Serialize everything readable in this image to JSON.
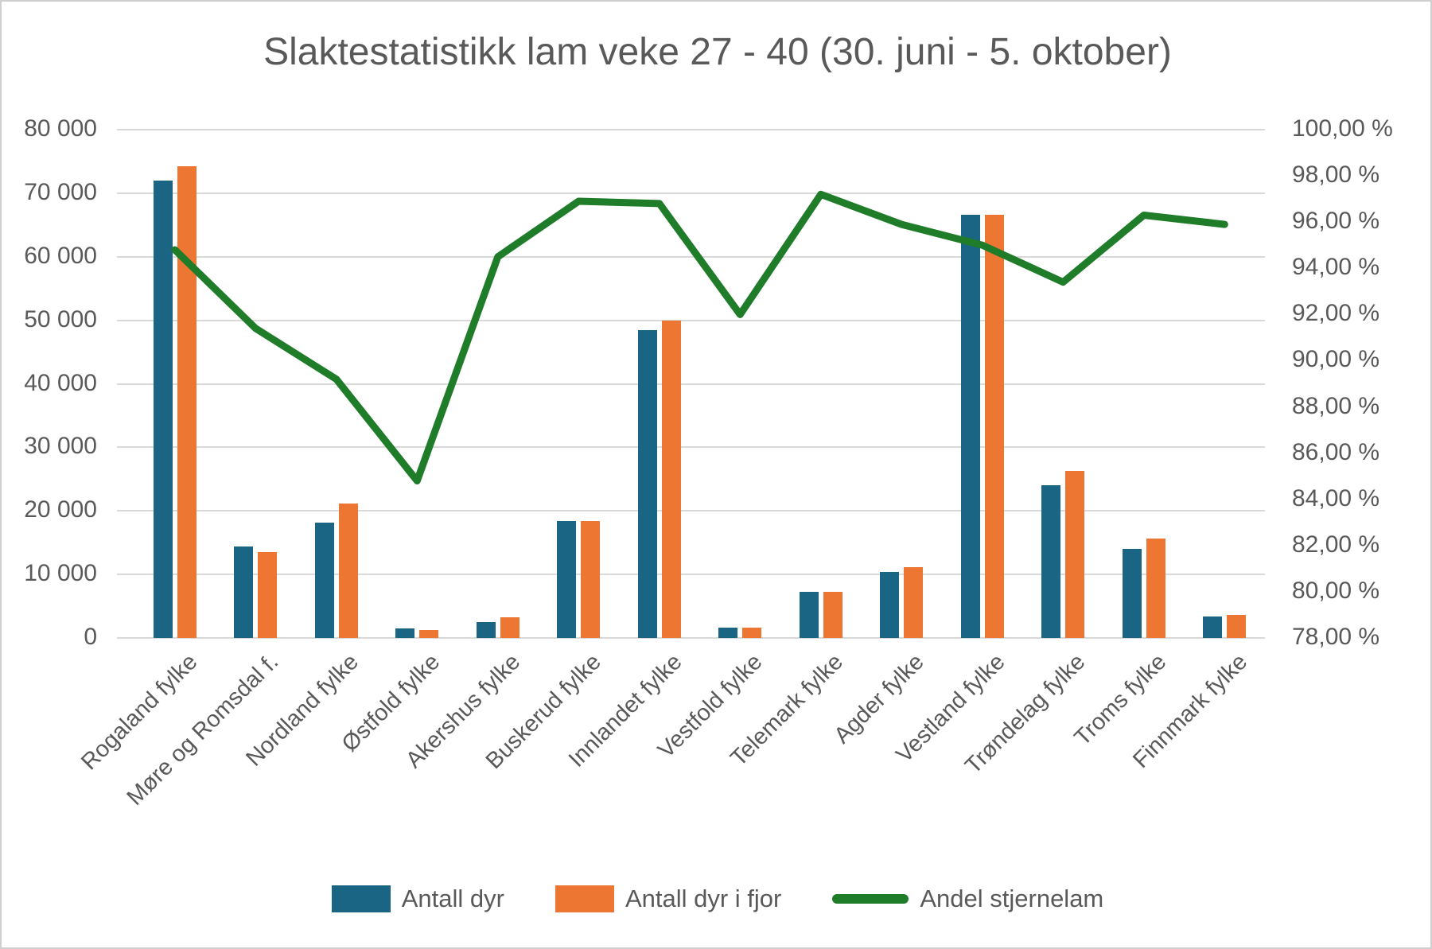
{
  "title": "Slaktestatistikk lam veke 27 - 40 (30. juni - 5. oktober)",
  "colors": {
    "bar_blue": "#1a6484",
    "bar_orange": "#ec7632",
    "line_green": "#1f7c28",
    "gridline": "#d9d9d9",
    "text": "#595959"
  },
  "left_axis": {
    "labels": [
      "80 000",
      "70 000",
      "60 000",
      "50 000",
      "40 000",
      "30 000",
      "20 000",
      "10 000",
      "0"
    ],
    "min": 0,
    "max": 80000
  },
  "right_axis": {
    "labels": [
      "100,00 %",
      "98,00 %",
      "96,00 %",
      "94,00 %",
      "92,00 %",
      "90,00 %",
      "88,00 %",
      "86,00 %",
      "84,00 %",
      "82,00 %",
      "80,00 %",
      "78,00 %"
    ],
    "min": 78,
    "max": 100
  },
  "legend": {
    "items": [
      {
        "label": "Antall dyr",
        "swatch": "bar",
        "color": "#1a6484"
      },
      {
        "label": "Antall dyr i fjor",
        "swatch": "bar",
        "color": "#ec7632"
      },
      {
        "label": "Andel stjernelam",
        "swatch": "line",
        "color": "#1f7c28"
      }
    ]
  },
  "chart_data": {
    "type": "bar",
    "subtype": "grouped-bars-with-secondary-line",
    "title": "Slaktestatistikk lam veke 27 - 40 (30. juni - 5. oktober)",
    "categories": [
      "Rogaland fylke",
      "Møre og Romsdal f.",
      "Nordland fylke",
      "Østfold fylke",
      "Akershus fylke",
      "Buskerud fylke",
      "Innlandet fylke",
      "Vestfold fylke",
      "Telemark fylke",
      "Agder fylke",
      "Vestland fylke",
      "Trøndelag fylke",
      "Troms fylke",
      "Finnmark fylke"
    ],
    "series": [
      {
        "name": "Antall dyr",
        "type": "bar",
        "axis": "left",
        "color": "#1a6484",
        "values": [
          72000,
          14400,
          18100,
          1450,
          2550,
          18400,
          48500,
          1600,
          7200,
          10400,
          66600,
          24100,
          14000,
          3400
        ]
      },
      {
        "name": "Antall dyr i fjor",
        "type": "bar",
        "axis": "left",
        "color": "#ec7632",
        "values": [
          74200,
          13500,
          21200,
          1300,
          3300,
          18400,
          50000,
          1600,
          7200,
          11100,
          66600,
          26300,
          15700,
          3600
        ]
      },
      {
        "name": "Andel stjernelam",
        "type": "line",
        "axis": "right",
        "color": "#1f7c28",
        "values": [
          94.8,
          91.4,
          89.2,
          84.8,
          94.5,
          96.9,
          96.8,
          92.0,
          97.2,
          95.9,
          95.0,
          93.4,
          96.3,
          95.9
        ]
      }
    ],
    "left_ylim": [
      0,
      80000
    ],
    "right_ylim": [
      78,
      100
    ],
    "grid": "horizontal",
    "legend_position": "bottom"
  }
}
